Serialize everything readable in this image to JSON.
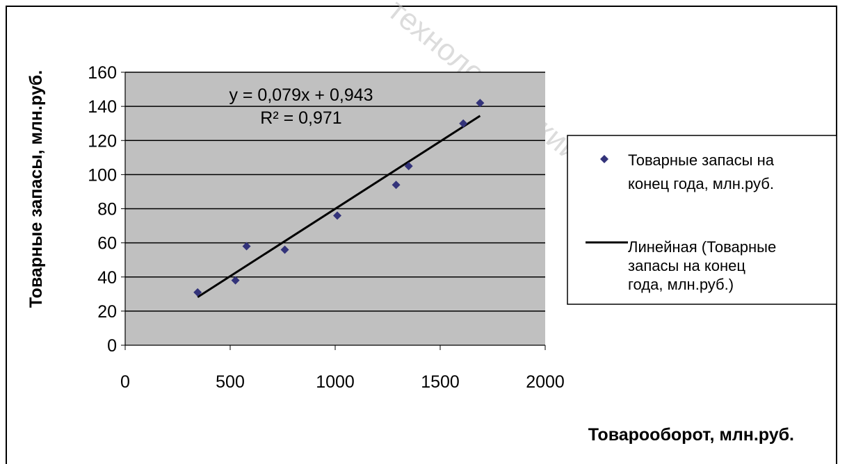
{
  "chart_data": {
    "type": "scatter",
    "title": "",
    "xlabel": "Товарооборот, млн.руб.",
    "ylabel": "Товарные запасы, млн.руб.",
    "xlim": [
      0,
      2000
    ],
    "ylim": [
      0,
      160
    ],
    "xticks": [
      "0",
      "500",
      "1000",
      "1500",
      "2000"
    ],
    "yticks": [
      "0",
      "20",
      "40",
      "60",
      "80",
      "100",
      "120",
      "140",
      "160"
    ],
    "grid": true,
    "legend_position": "right",
    "plot_background": "#c0c0c0",
    "series": [
      {
        "name": "Товарные запасы на конец года, млн.руб.",
        "marker": "diamond",
        "color": "#33337a",
        "points": [
          {
            "x": 345,
            "y": 31
          },
          {
            "x": 525,
            "y": 38
          },
          {
            "x": 578,
            "y": 58
          },
          {
            "x": 760,
            "y": 56
          },
          {
            "x": 1010,
            "y": 76
          },
          {
            "x": 1290,
            "y": 94
          },
          {
            "x": 1350,
            "y": 105
          },
          {
            "x": 1610,
            "y": 130
          },
          {
            "x": 1690,
            "y": 142
          }
        ]
      }
    ],
    "trendline": {
      "name": "Линейная (Товарные запасы на конец года, млн.руб.)",
      "type": "linear",
      "slope": 0.079,
      "intercept": 0.943,
      "x_range": [
        345,
        1690
      ],
      "color": "#000000",
      "equation_label": "y = 0,079x + 0,943",
      "r2_label": "R² = 0,971"
    },
    "legend": [
      {
        "label_lines": [
          "Товарные запасы на",
          "конец года, млн.руб."
        ]
      },
      {
        "label_lines": [
          "Линейная (Товарные",
          "запасы на конец",
          "года, млн.руб.)"
        ]
      }
    ]
  },
  "watermark": "технологический университе"
}
